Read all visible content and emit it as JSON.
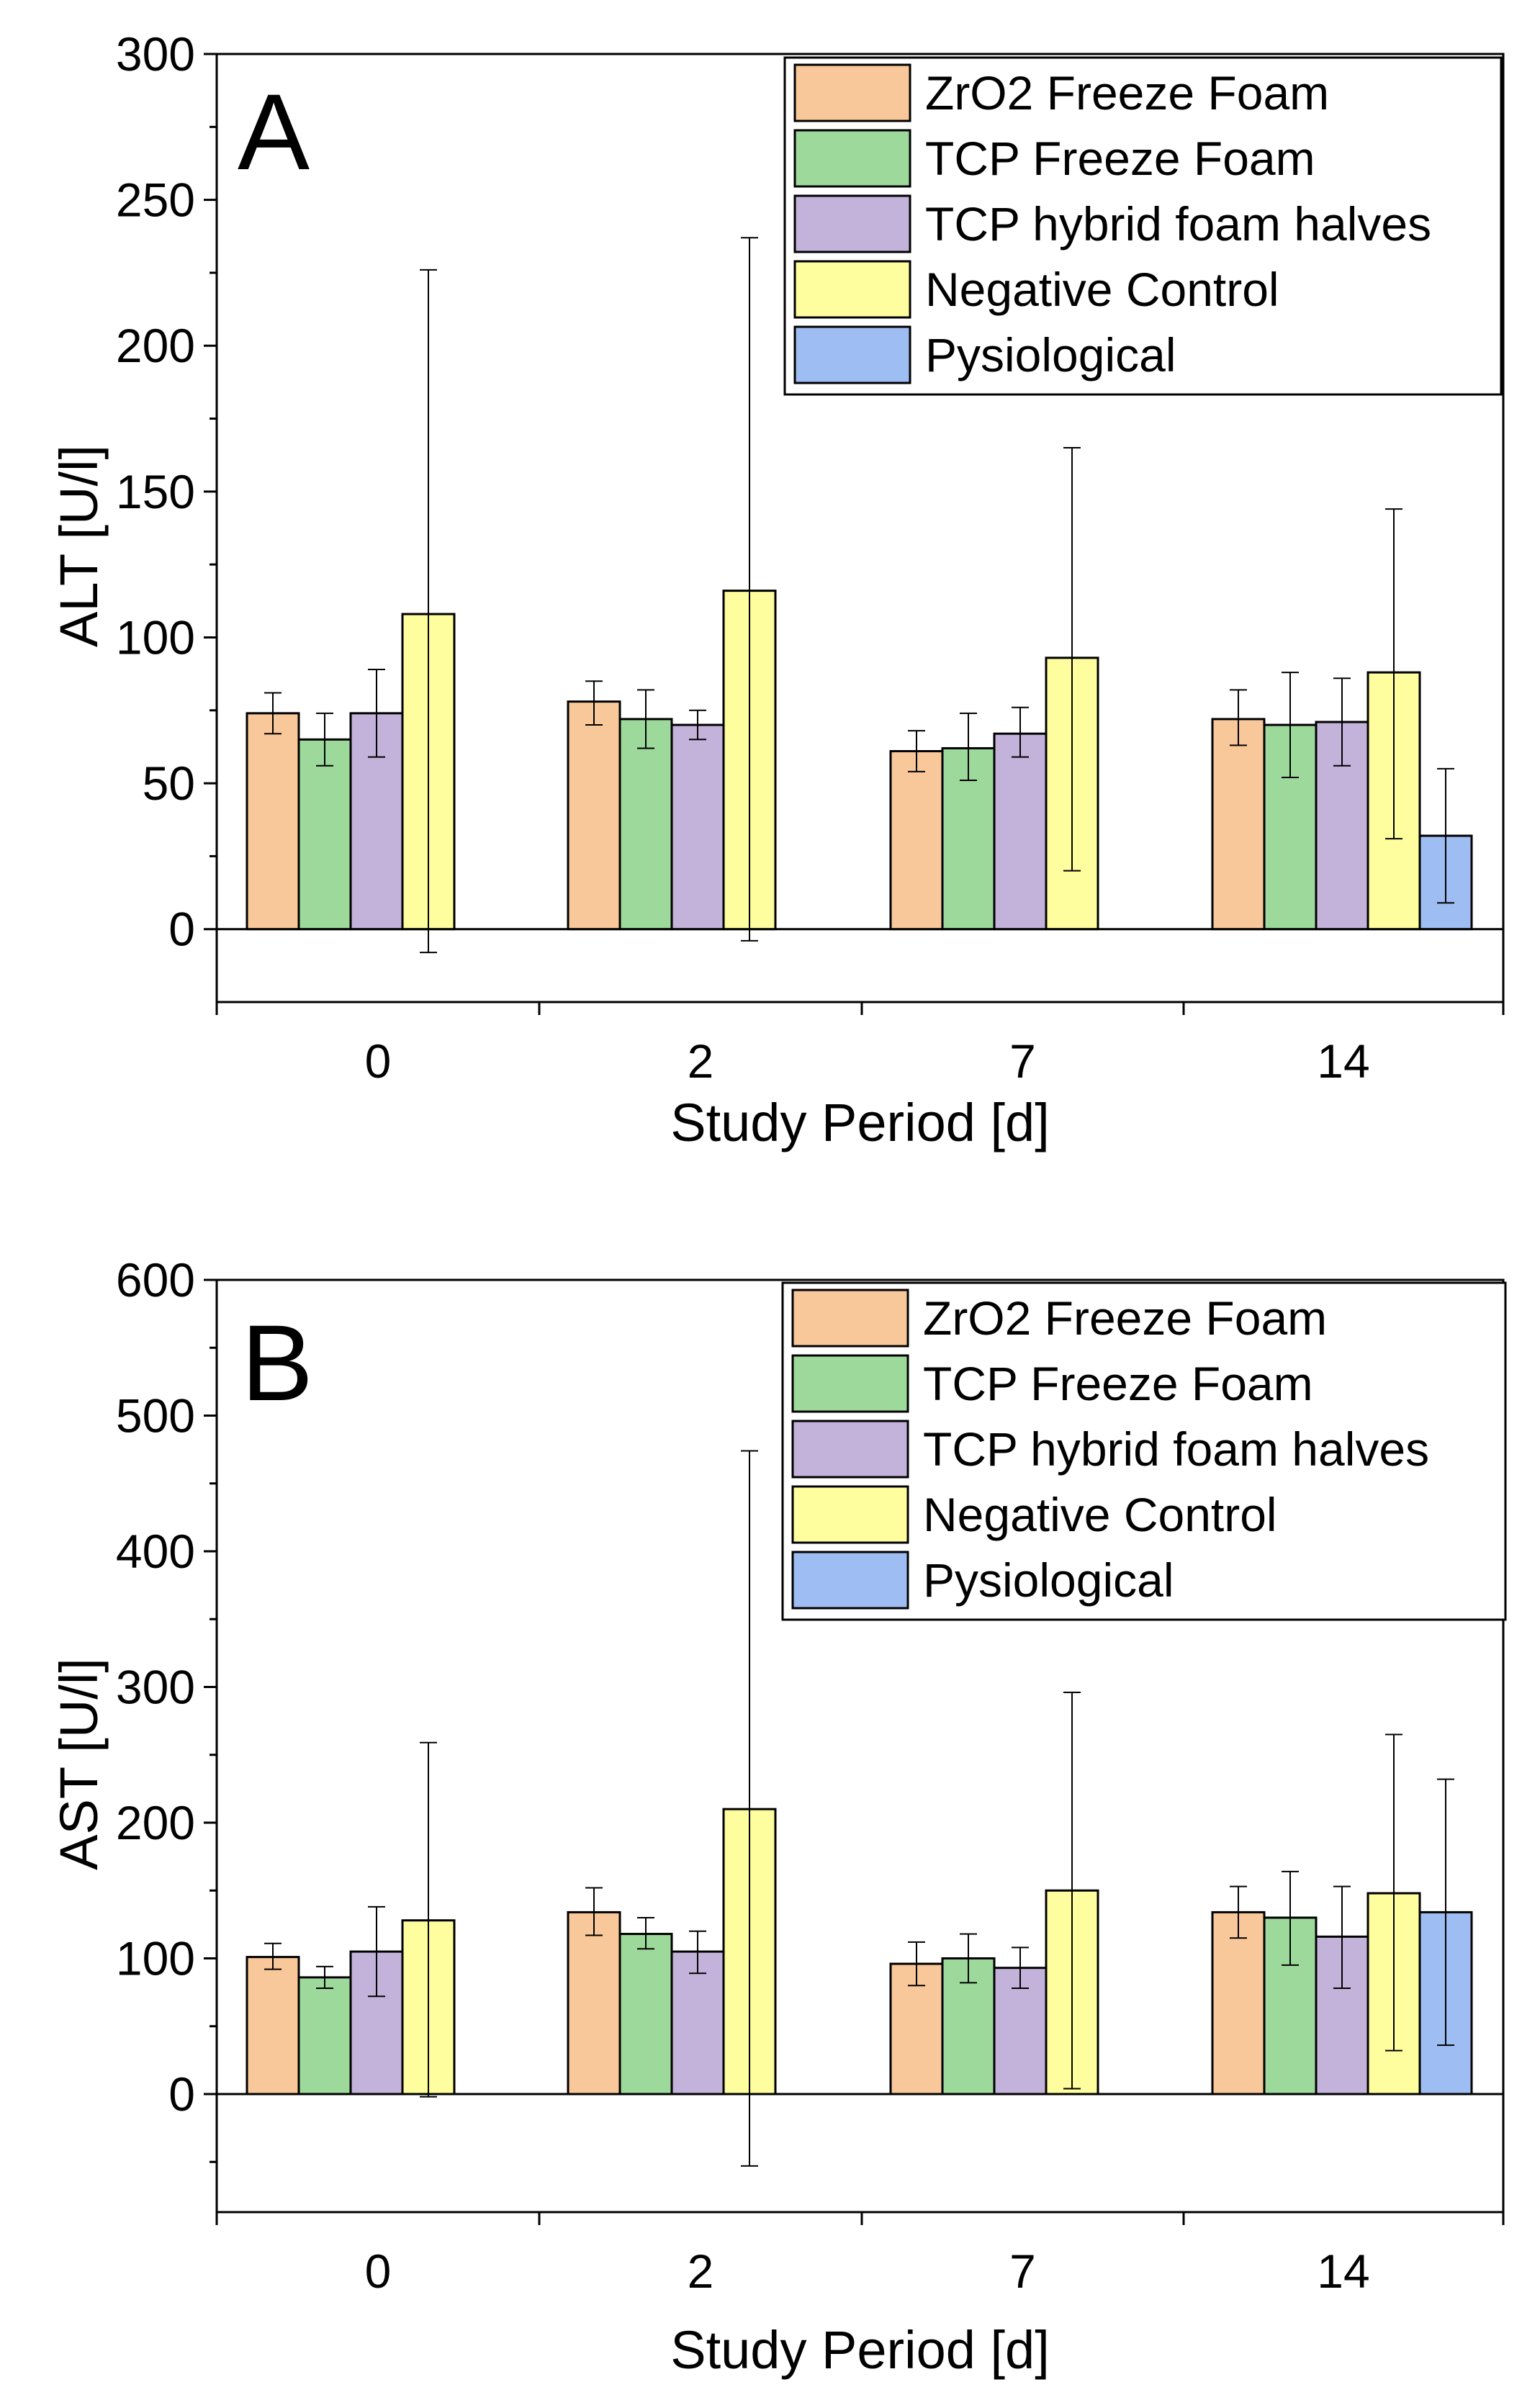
{
  "chart_data": [
    {
      "type": "bar",
      "panel_label": "A",
      "xlabel": "Study Period [d]",
      "ylabel": "ALT [U/l]",
      "categories": [
        "0",
        "2",
        "7",
        "14"
      ],
      "ylim": [
        -25,
        300
      ],
      "yticks": [
        "0",
        "50",
        "100",
        "150",
        "200",
        "250",
        "300"
      ],
      "legend_position": "top-right",
      "grid": false,
      "series": [
        {
          "name": "ZrO2 Freeze Foam",
          "color": "#F9C89A",
          "values": [
            74,
            78,
            61,
            72
          ],
          "err_low": [
            67,
            70,
            54,
            63
          ],
          "err_high": [
            81,
            85,
            68,
            82
          ]
        },
        {
          "name": "TCP Freeze Foam",
          "color": "#9ED99C",
          "values": [
            65,
            72,
            62,
            70
          ],
          "err_low": [
            56,
            62,
            51,
            52
          ],
          "err_high": [
            74,
            82,
            74,
            88
          ]
        },
        {
          "name": "TCP hybrid foam halves",
          "color": "#C3B3DA",
          "values": [
            74,
            70,
            67,
            71
          ],
          "err_low": [
            59,
            65,
            59,
            56
          ],
          "err_high": [
            89,
            75,
            76,
            86
          ]
        },
        {
          "name": "Negative Control",
          "color": "#FFFE9E",
          "values": [
            108,
            116,
            93,
            88
          ],
          "err_low": [
            -8,
            -4,
            20,
            31
          ],
          "err_high": [
            226,
            237,
            165,
            144
          ]
        },
        {
          "name": "Pysiological",
          "color": "#9EBEF3",
          "values": [
            null,
            null,
            null,
            32
          ],
          "err_low": [
            null,
            null,
            null,
            9
          ],
          "err_high": [
            null,
            null,
            null,
            55
          ]
        }
      ]
    },
    {
      "type": "bar",
      "panel_label": "B",
      "xlabel": "Study Period [d]",
      "ylabel": "AST [U/l]",
      "categories": [
        "0",
        "2",
        "7",
        "14"
      ],
      "ylim": [
        -87,
        600
      ],
      "yticks": [
        "0",
        "100",
        "200",
        "300",
        "400",
        "500",
        "600"
      ],
      "legend_position": "top-right",
      "grid": false,
      "series": [
        {
          "name": "ZrO2 Freeze Foam",
          "color": "#F9C89A",
          "values": [
            101,
            134,
            96,
            134
          ],
          "err_low": [
            92,
            117,
            80,
            115
          ],
          "err_high": [
            111,
            152,
            112,
            153
          ]
        },
        {
          "name": "TCP Freeze Foam",
          "color": "#9ED99C",
          "values": [
            86,
            118,
            100,
            130
          ],
          "err_low": [
            78,
            107,
            82,
            95
          ],
          "err_high": [
            94,
            130,
            118,
            164
          ]
        },
        {
          "name": "TCP hybrid foam halves",
          "color": "#C3B3DA",
          "values": [
            105,
            105,
            93,
            116
          ],
          "err_low": [
            72,
            89,
            78,
            78
          ],
          "err_high": [
            138,
            120,
            108,
            153
          ]
        },
        {
          "name": "Negative Control",
          "color": "#FFFE9E",
          "values": [
            128,
            210,
            150,
            148
          ],
          "err_low": [
            -2,
            -53,
            4,
            32
          ],
          "err_high": [
            259,
            474,
            296,
            265
          ]
        },
        {
          "name": "Pysiological",
          "color": "#9EBEF3",
          "values": [
            null,
            null,
            null,
            134
          ],
          "err_low": [
            null,
            null,
            null,
            36
          ],
          "err_high": [
            null,
            null,
            null,
            232
          ]
        }
      ]
    }
  ]
}
